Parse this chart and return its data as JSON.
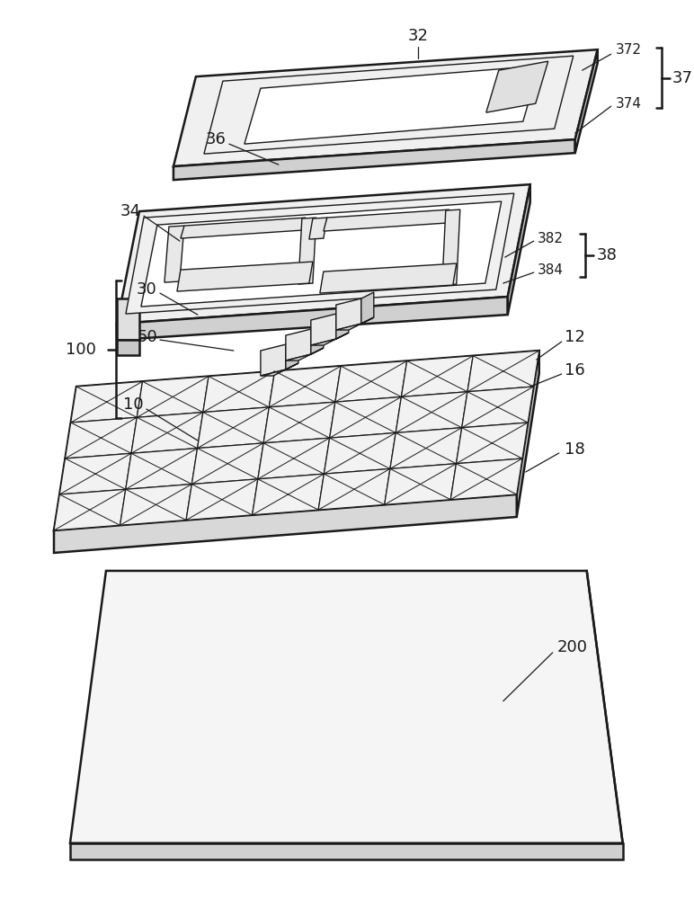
{
  "bg_color": "#ffffff",
  "line_color": "#1a1a1a",
  "lw_main": 1.8,
  "lw_thin": 1.0,
  "lw_label": 0.9,
  "font_size": 11,
  "font_size_large": 13
}
